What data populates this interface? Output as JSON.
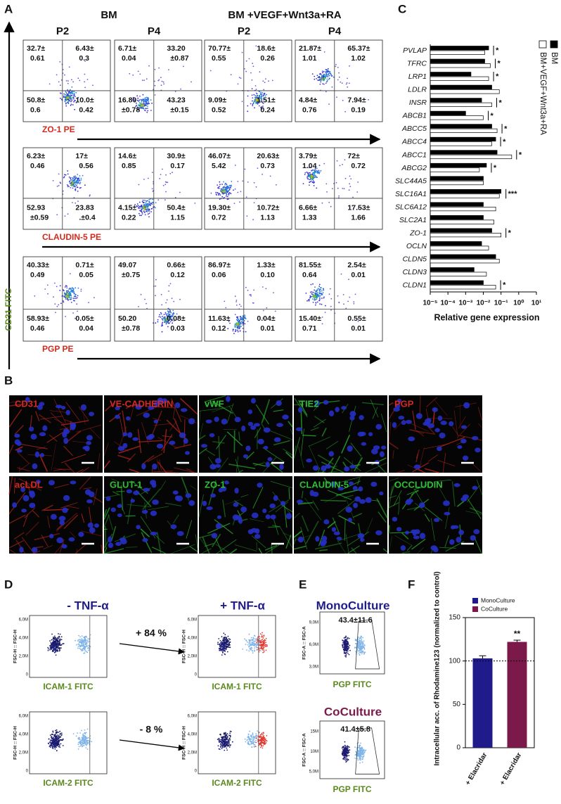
{
  "panel_labels": [
    "A",
    "B",
    "C",
    "D",
    "E",
    "F"
  ],
  "panel_a": {
    "groups": [
      "BM",
      "BM +VEGF+Wnt3a+RA"
    ],
    "passages": [
      "P2",
      "P4",
      "P2",
      "P4"
    ],
    "y_label": "CD31 FITC",
    "rows": [
      {
        "marker": "ZO-1 PE",
        "plots": [
          [
            [
              "32.7±",
              "0.61"
            ],
            [
              "6.43±",
              "0.3"
            ],
            [
              "50.8±",
              "0.6"
            ],
            [
              "10.0±",
              "0.42"
            ]
          ],
          [
            [
              "6.71±",
              "0.04"
            ],
            [
              "33.20",
              "±0.87"
            ],
            [
              "16.80",
              "±0.78"
            ],
            [
              "43.23",
              "±0.15"
            ]
          ],
          [
            [
              "70.77±",
              "0.55"
            ],
            [
              "18.6±",
              "0.26"
            ],
            [
              "9.09±",
              "0.52"
            ],
            [
              "1.51±",
              "0.24"
            ]
          ],
          [
            [
              "21.87±",
              "1.01"
            ],
            [
              "65.37±",
              "1.02"
            ],
            [
              "4.84±",
              "0.76"
            ],
            [
              "7.94±",
              "0.19"
            ]
          ]
        ]
      },
      {
        "marker": "CLAUDIN-5 PE",
        "plots": [
          [
            [
              "6.23±",
              "0.46"
            ],
            [
              "17±",
              "0.56"
            ],
            [
              "52.93",
              "±0.59"
            ],
            [
              "23.83",
              ".±0.4"
            ]
          ],
          [
            [
              "14.6±",
              "0.85"
            ],
            [
              "30.9±",
              "0.17"
            ],
            [
              "4.15±",
              "0.22"
            ],
            [
              "50.4±",
              "1.15"
            ]
          ],
          [
            [
              "46.07±",
              "5.42"
            ],
            [
              "20.63±",
              "0.73"
            ],
            [
              "19.30±",
              "0.72"
            ],
            [
              "10.72±",
              "1.13"
            ]
          ],
          [
            [
              "3.79±",
              "1.04"
            ],
            [
              "72±",
              "0.72"
            ],
            [
              "6.66±",
              "1.33"
            ],
            [
              "17.53±",
              "1.66"
            ]
          ]
        ]
      },
      {
        "marker": "PGP PE",
        "plots": [
          [
            [
              "40.33±",
              "0.49"
            ],
            [
              "0.71±",
              "0.05"
            ],
            [
              "58.93±",
              "0.46"
            ],
            [
              "0.05±",
              "0.04"
            ]
          ],
          [
            [
              "49.07",
              "±0.75"
            ],
            [
              "0.66±",
              "0.12"
            ],
            [
              "50.20",
              "±0.78"
            ],
            [
              "0.08±",
              "0.03"
            ]
          ],
          [
            [
              "86.97±",
              "0.06"
            ],
            [
              "1.33±",
              "0.10"
            ],
            [
              "11.63±",
              "0.12"
            ],
            [
              "0.04±",
              "0.01"
            ]
          ],
          [
            [
              "81.55±",
              "0.64"
            ],
            [
              "2.54±",
              "0.01"
            ],
            [
              "15.40±",
              "0.71"
            ],
            [
              "0.55±",
              "0.01"
            ]
          ]
        ]
      }
    ]
  },
  "panel_b": {
    "stains": [
      {
        "label": "CD31",
        "channel": "red"
      },
      {
        "label": "VE-CADHERIN",
        "channel": "red"
      },
      {
        "label": "vWF",
        "channel": "green"
      },
      {
        "label": "TIE2",
        "channel": "green"
      },
      {
        "label": "PGP",
        "channel": "red"
      },
      {
        "label": "acLDL",
        "channel": "red"
      },
      {
        "label": "GLUT-1",
        "channel": "green"
      },
      {
        "label": "ZO-1",
        "channel": "green"
      },
      {
        "label": "CLAUDIN-5",
        "channel": "green"
      },
      {
        "label": "OCCLUDIN",
        "channel": "green"
      }
    ]
  },
  "panel_d": {
    "conditions": [
      "- TNF-α",
      "+ TNF-α"
    ],
    "y_label": "FSC-H :: FSC-H",
    "y_ticks": [
      "0",
      "2,0M",
      "4,0M",
      "6,0M"
    ],
    "rows": [
      {
        "marker": "ICAM-1 FITC",
        "change": "+ 84 %"
      },
      {
        "marker": "ICAM-2 FITC",
        "change": "- 8 %"
      }
    ]
  },
  "panel_e": {
    "y_label": "FSC-A :: FSC-A",
    "cultures": [
      {
        "name": "MonoCulture",
        "color": "#1f1b8a",
        "gate": "43.4±11.6",
        "marker": "PGP FITC",
        "y_ticks": [
          "3,0M",
          "6,0M",
          "9,0M"
        ]
      },
      {
        "name": "CoCulture",
        "color": "#7b1a4a",
        "gate": "41.4±5.8",
        "marker": "PGP FITC",
        "y_ticks": [
          "5,0M",
          "10M",
          "15M"
        ]
      }
    ]
  },
  "chart_data": [
    {
      "type": "hbar",
      "xlabel": "Relative gene expression",
      "log_x": true,
      "xlim": [
        1e-05,
        10
      ],
      "xticks": [
        {
          "value": 1e-05,
          "label": "10⁻⁵"
        },
        {
          "value": 0.0001,
          "label": "10⁻⁴"
        },
        {
          "value": 0.001,
          "label": "10⁻³"
        },
        {
          "value": 0.01,
          "label": "10⁻²"
        },
        {
          "value": 0.1,
          "label": "10⁻¹"
        },
        {
          "value": 1,
          "label": "10⁰"
        },
        {
          "value": 10,
          "label": "10¹"
        }
      ],
      "categories": [
        "PVLAP",
        "TFRC",
        "LRP1",
        "LDLR",
        "INSR",
        "ABCB1",
        "ABCC5",
        "ABCC4",
        "ABCC1",
        "ABCG2",
        "SLC44A5",
        "SLC16A1",
        "SLC6A12",
        "SLC2A1",
        "ZO-1",
        "OCLN",
        "CLDN5",
        "CLDN3",
        "CLDN1"
      ],
      "series": [
        {
          "name": "BM",
          "color": "#000000",
          "values": [
            0.02,
            0.012,
            0.002,
            0.03,
            0.008,
            0.001,
            0.03,
            0.05,
            0.06,
            0.015,
            0.01,
            0.1,
            0.01,
            0.01,
            0.03,
            0.008,
            0.05,
            0.003,
            0.01
          ]
        },
        {
          "name": "BM+VEGF+Wnt3a+RA",
          "color": "#ffffff",
          "values": [
            0.012,
            0.025,
            0.02,
            0.08,
            0.03,
            0.01,
            0.06,
            0.03,
            0.4,
            0.006,
            0.01,
            0.08,
            0.05,
            0.04,
            0.1,
            0.02,
            0.08,
            0.015,
            0.05
          ]
        }
      ],
      "significance": [
        "*",
        "*",
        "*",
        null,
        "*",
        "*",
        "*",
        "*",
        "*",
        "*",
        null,
        "***",
        null,
        null,
        "*",
        null,
        null,
        null,
        "*"
      ]
    },
    {
      "type": "bar",
      "ylabel": "Intracellular acc. of Rhodamine123 (normalized to control)",
      "categories": [
        "+ Elacridar",
        "+ Elacridar"
      ],
      "series": [
        {
          "name": "MonoCulture",
          "color": "#1f1b8a",
          "values": [
            103,
            null
          ],
          "errors": [
            3,
            null
          ]
        },
        {
          "name": "CoCulture",
          "color": "#7b1a4a",
          "values": [
            null,
            122
          ],
          "errors": [
            null,
            2
          ]
        }
      ],
      "significance": [
        null,
        "**"
      ],
      "reference_line": 100,
      "ylim": [
        0,
        150
      ],
      "yticks": [
        0,
        50,
        100,
        150
      ]
    }
  ]
}
